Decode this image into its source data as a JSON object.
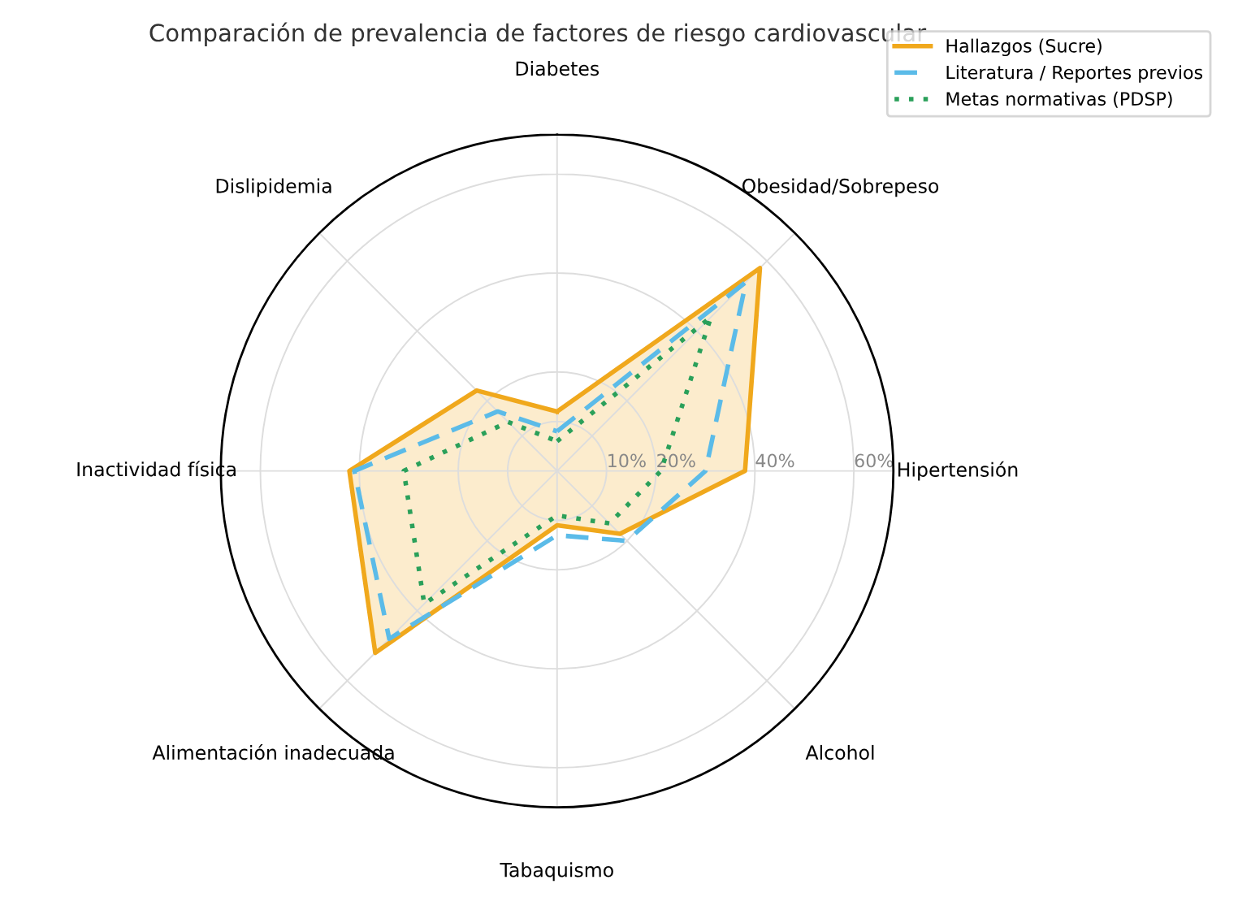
{
  "chart_data": {
    "type": "radar",
    "title": "Comparación de prevalencia de factores de riesgo cardiovascular",
    "categories": [
      "Diabetes",
      "Obesidad/Sobrepeso",
      "Hipertensión",
      "Alcohol",
      "Tabaquismo",
      "Alimentación inadecuada",
      "Inactividad física",
      "Dislipidemia"
    ],
    "series": [
      {
        "name": "Hallazgos (Sucre)",
        "color": "#f0a81c",
        "line_style": "solid",
        "values": [
          12,
          58,
          38,
          18,
          11,
          52,
          42,
          23
        ]
      },
      {
        "name": "Literatura / Reportes previos",
        "color": "#5bbbe8",
        "line_style": "dashed",
        "values": [
          8,
          54,
          30,
          20,
          13,
          48,
          41,
          17
        ]
      },
      {
        "name": "Metas normativas (PDSP)",
        "color": "#2aa05a",
        "line_style": "dotted",
        "values": [
          6,
          44,
          21,
          15,
          9,
          38,
          31,
          14
        ]
      }
    ],
    "ylim": [
      0,
      68
    ],
    "yticks": [
      {
        "value": 10,
        "label": "10%"
      },
      {
        "value": 20,
        "label": "20%"
      },
      {
        "value": 40,
        "label": "40%"
      },
      {
        "value": 60,
        "label": "60%"
      }
    ],
    "grid": true,
    "legend": "top right",
    "marker": "none"
  }
}
